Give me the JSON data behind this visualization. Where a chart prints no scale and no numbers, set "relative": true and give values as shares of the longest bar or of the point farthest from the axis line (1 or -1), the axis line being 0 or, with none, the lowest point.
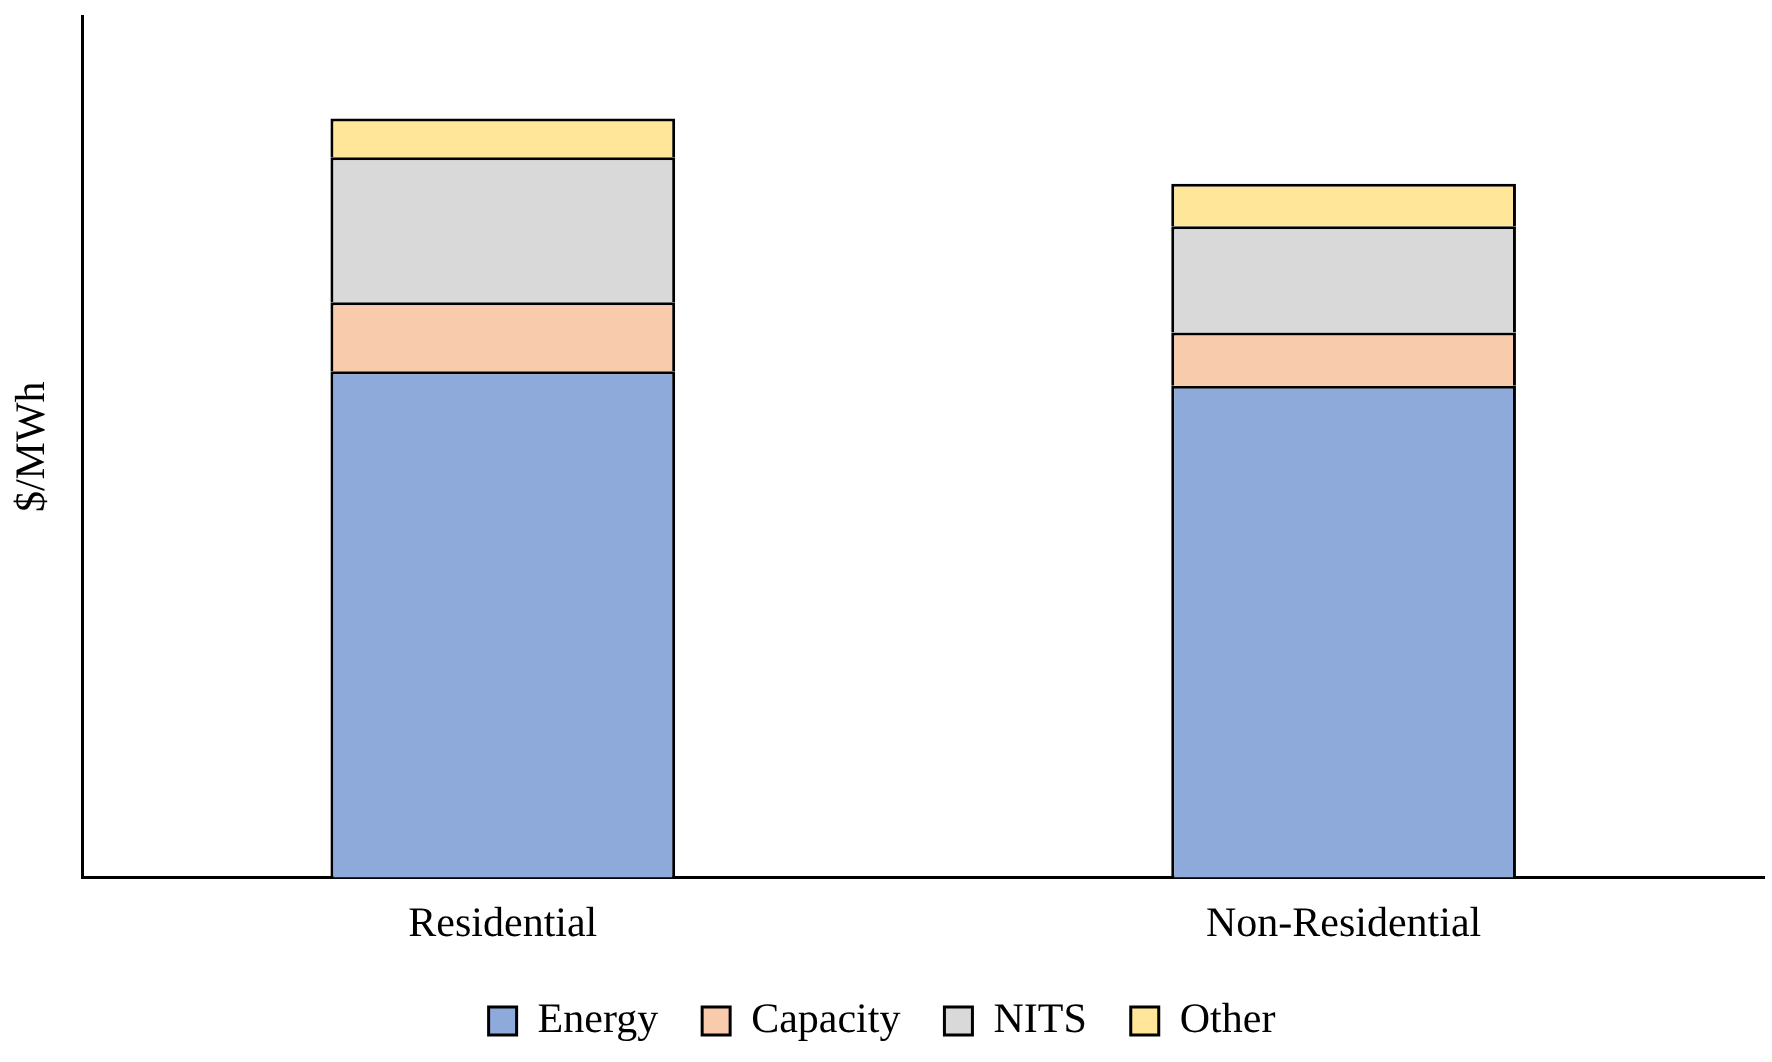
{
  "chart_data": {
    "type": "bar",
    "stacked": true,
    "relative": true,
    "ylabel": "$/MWh",
    "categories": [
      "Residential",
      "Non-Residential"
    ],
    "legend": "bottom",
    "grid": false,
    "series": [
      {
        "name": "Energy",
        "color": "#8eaadb",
        "values": [
          0.667,
          0.648
        ]
      },
      {
        "name": "Capacity",
        "color": "#f8cbad",
        "values": [
          0.091,
          0.07
        ]
      },
      {
        "name": "NITS",
        "color": "#d9d9d9",
        "values": [
          0.191,
          0.14
        ]
      },
      {
        "name": "Other",
        "color": "#ffe699",
        "values": [
          0.051,
          0.056
        ]
      }
    ]
  }
}
